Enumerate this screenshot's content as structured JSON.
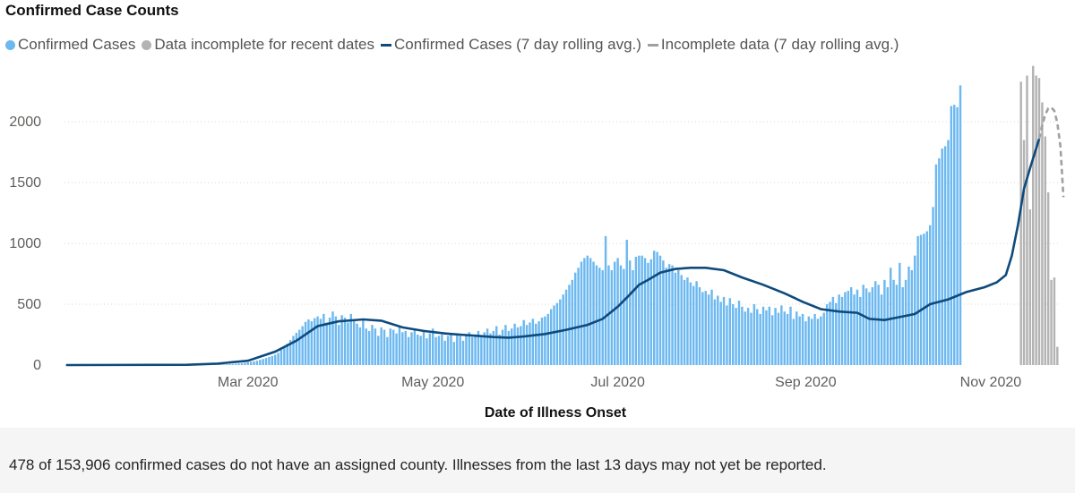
{
  "title": "Confirmed Case Counts",
  "legend": [
    {
      "label": "Confirmed Cases",
      "color": "#6cb8f0",
      "kind": "dot"
    },
    {
      "label": "Data incomplete for recent dates",
      "color": "#b3b3b3",
      "kind": "dot"
    },
    {
      "label": "Confirmed Cases (7 day rolling avg.)",
      "color": "#0e4a7c",
      "kind": "line"
    },
    {
      "label": "Incomplete data (7 day rolling avg.)",
      "color": "#a0a0a0",
      "kind": "dashed"
    }
  ],
  "footnote": "478 of 153,906 confirmed cases do not have an assigned county. Illnesses from the last 13 days may not yet be reported.",
  "chart_data": {
    "type": "bar",
    "title": "Confirmed Case Counts",
    "xlabel": "Date of Illness Onset",
    "ylabel": "",
    "ylim": [
      0,
      2450
    ],
    "yticks": [
      0,
      500,
      1000,
      1500,
      2000
    ],
    "grid": true,
    "x_range": [
      "2020-01-01",
      "2020-11-23"
    ],
    "xticks": [
      {
        "label": "Mar 2020",
        "date": "2020-03-01"
      },
      {
        "label": "May 2020",
        "date": "2020-05-01"
      },
      {
        "label": "Jul 2020",
        "date": "2020-07-01"
      },
      {
        "label": "Sep 2020",
        "date": "2020-09-01"
      },
      {
        "label": "Nov 2020",
        "date": "2020-11-01"
      }
    ],
    "bars_complete": {
      "name": "Confirmed Cases",
      "color": "#6cb8f0",
      "start_date": "2020-01-01",
      "values": [
        0,
        0,
        0,
        0,
        0,
        0,
        0,
        0,
        0,
        0,
        0,
        0,
        0,
        0,
        0,
        0,
        0,
        0,
        0,
        0,
        0,
        0,
        0,
        0,
        0,
        0,
        0,
        0,
        0,
        0,
        0,
        0,
        0,
        0,
        0,
        0,
        0,
        0,
        0,
        0,
        0,
        0,
        0,
        0,
        0,
        0,
        1,
        2,
        2,
        3,
        3,
        4,
        5,
        6,
        7,
        8,
        10,
        12,
        15,
        18,
        22,
        26,
        30,
        36,
        43,
        50,
        58,
        66,
        75,
        85,
        100,
        125,
        150,
        175,
        205,
        240,
        265,
        290,
        320,
        355,
        375,
        360,
        385,
        400,
        380,
        420,
        350,
        390,
        440,
        400,
        330,
        410,
        390,
        350,
        420,
        360,
        340,
        310,
        380,
        300,
        280,
        330,
        300,
        240,
        310,
        290,
        230,
        300,
        290,
        260,
        310,
        270,
        280,
        230,
        270,
        300,
        250,
        240,
        290,
        220,
        260,
        300,
        230,
        240,
        250,
        200,
        240,
        260,
        190,
        250,
        240,
        200,
        250,
        270,
        230,
        240,
        280,
        230,
        270,
        300,
        260,
        280,
        320,
        250,
        290,
        330,
        280,
        300,
        340,
        310,
        320,
        370,
        330,
        350,
        380,
        340,
        360,
        390,
        400,
        420,
        460,
        490,
        510,
        540,
        580,
        620,
        660,
        700,
        760,
        800,
        850,
        880,
        900,
        880,
        850,
        820,
        800,
        780,
        1060,
        820,
        780,
        850,
        880,
        820,
        790,
        1030,
        860,
        780,
        890,
        900,
        900,
        880,
        840,
        870,
        940,
        930,
        900,
        860,
        800,
        830,
        820,
        760,
        780,
        740,
        700,
        720,
        680,
        650,
        690,
        640,
        600,
        610,
        580,
        620,
        540,
        570,
        520,
        560,
        490,
        550,
        500,
        470,
        530,
        480,
        440,
        470,
        430,
        500,
        460,
        420,
        480,
        450,
        480,
        410,
        470,
        430,
        490,
        440,
        420,
        480,
        380,
        440,
        400,
        420,
        360,
        400,
        380,
        420,
        380,
        400,
        430,
        500,
        520,
        560,
        510,
        580,
        560,
        600,
        610,
        640,
        580,
        620,
        560,
        660,
        630,
        600,
        640,
        690,
        660,
        580,
        700,
        640,
        800,
        700,
        660,
        840,
        640,
        700,
        810,
        780,
        900,
        1060,
        1070,
        1080,
        1100,
        1150,
        1300,
        1650,
        1700,
        1780,
        1800,
        1850,
        2130,
        2140,
        2120,
        2300
      ]
    },
    "bars_incomplete": {
      "name": "Data incomplete for recent dates",
      "color": "#b3b3b3",
      "start_date": "2020-11-11",
      "values": [
        2330,
        1850,
        2380,
        1280,
        2460,
        2380,
        2360,
        2160,
        1880,
        1420,
        700,
        720,
        150
      ]
    },
    "rolling_complete": {
      "name": "Confirmed Cases (7 day rolling avg.)",
      "color": "#0e4a7c",
      "points": [
        [
          "2020-01-01",
          0
        ],
        [
          "2020-02-10",
          2
        ],
        [
          "2020-02-20",
          12
        ],
        [
          "2020-03-01",
          35
        ],
        [
          "2020-03-10",
          110
        ],
        [
          "2020-03-17",
          200
        ],
        [
          "2020-03-24",
          320
        ],
        [
          "2020-03-31",
          360
        ],
        [
          "2020-04-08",
          375
        ],
        [
          "2020-04-14",
          365
        ],
        [
          "2020-04-21",
          310
        ],
        [
          "2020-04-28",
          280
        ],
        [
          "2020-05-05",
          260
        ],
        [
          "2020-05-10",
          250
        ],
        [
          "2020-05-16",
          240
        ],
        [
          "2020-05-21",
          230
        ],
        [
          "2020-05-26",
          225
        ],
        [
          "2020-05-31",
          235
        ],
        [
          "2020-06-07",
          255
        ],
        [
          "2020-06-14",
          290
        ],
        [
          "2020-06-21",
          330
        ],
        [
          "2020-06-26",
          380
        ],
        [
          "2020-07-01",
          480
        ],
        [
          "2020-07-05",
          580
        ],
        [
          "2020-07-08",
          660
        ],
        [
          "2020-07-11",
          700
        ],
        [
          "2020-07-15",
          760
        ],
        [
          "2020-07-20",
          790
        ],
        [
          "2020-07-25",
          800
        ],
        [
          "2020-07-30",
          800
        ],
        [
          "2020-08-05",
          780
        ],
        [
          "2020-08-11",
          720
        ],
        [
          "2020-08-18",
          660
        ],
        [
          "2020-08-25",
          590
        ],
        [
          "2020-08-31",
          520
        ],
        [
          "2020-09-06",
          460
        ],
        [
          "2020-09-12",
          440
        ],
        [
          "2020-09-18",
          430
        ],
        [
          "2020-09-22",
          380
        ],
        [
          "2020-09-27",
          370
        ],
        [
          "2020-10-01",
          390
        ],
        [
          "2020-10-07",
          420
        ],
        [
          "2020-10-12",
          500
        ],
        [
          "2020-10-18",
          540
        ],
        [
          "2020-10-24",
          600
        ],
        [
          "2020-10-30",
          640
        ],
        [
          "2020-11-03",
          680
        ],
        [
          "2020-11-06",
          740
        ],
        [
          "2020-11-08",
          900
        ],
        [
          "2020-11-10",
          1150
        ],
        [
          "2020-11-12",
          1450
        ],
        [
          "2020-11-14",
          1620
        ],
        [
          "2020-11-17",
          1860
        ]
      ]
    },
    "rolling_incomplete": {
      "name": "Incomplete data (7 day rolling avg.)",
      "color": "#a0a0a0",
      "points": [
        [
          "2020-11-17",
          1860
        ],
        [
          "2020-11-18",
          1970
        ],
        [
          "2020-11-19",
          2060
        ],
        [
          "2020-11-20",
          2110
        ],
        [
          "2020-11-21",
          2120
        ],
        [
          "2020-11-22",
          2090
        ],
        [
          "2020-11-23",
          1990
        ],
        [
          "2020-11-24",
          1800
        ],
        [
          "2020-11-25",
          1380
        ]
      ]
    }
  }
}
